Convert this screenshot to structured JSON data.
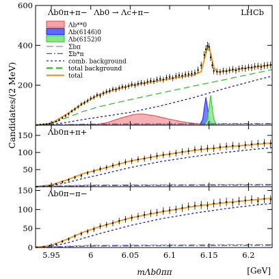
{
  "chart_data": [
    {
      "type": "scatter",
      "panel": "top",
      "label": "Λb0π+π−",
      "decay_label": "Λb0 → Λc+π−",
      "brand": "LHCb",
      "ylabel": "Candidates/(2 MeV)",
      "ylim": [
        0,
        600
      ],
      "yticks": [
        200,
        400,
        600
      ],
      "legend_placement": "top-left",
      "legend": [
        {
          "label": "Λb**0",
          "kind": "fill",
          "color": "#ff3b3b",
          "fill": "#f4a3a8"
        },
        {
          "label": "Λb(6146)0",
          "kind": "fill",
          "color": "#2020ff",
          "fill": "#5a6cff"
        },
        {
          "label": "Λb(6152)0",
          "kind": "fill",
          "color": "#22cc22",
          "fill": "#8ae68a"
        },
        {
          "label": "Σbπ",
          "kind": "line",
          "color": "#9090e0",
          "dash": "10 4"
        },
        {
          "label": "Σb*π",
          "kind": "line",
          "color": "#555588",
          "dash": "8 3 2 3"
        },
        {
          "label": "comb. background",
          "kind": "line",
          "color": "#1a1aa8",
          "dash": "3 3"
        },
        {
          "label": "total background",
          "kind": "line",
          "color": "#3cb83c",
          "dash": "9 5"
        },
        {
          "label": "total",
          "kind": "line",
          "color": "#f59a1c",
          "dash": ""
        }
      ],
      "data_x": [
        5.932,
        5.936,
        5.94,
        5.944,
        5.948,
        5.952,
        5.956,
        5.96,
        5.964,
        5.968,
        5.972,
        5.976,
        5.98,
        5.984,
        5.988,
        5.992,
        5.996,
        6.0,
        6.004,
        6.008,
        6.012,
        6.016,
        6.02,
        6.024,
        6.028,
        6.032,
        6.036,
        6.04,
        6.044,
        6.048,
        6.052,
        6.056,
        6.06,
        6.064,
        6.068,
        6.072,
        6.076,
        6.08,
        6.084,
        6.088,
        6.092,
        6.096,
        6.1,
        6.104,
        6.108,
        6.112,
        6.116,
        6.12,
        6.124,
        6.128,
        6.132,
        6.136,
        6.14,
        6.144,
        6.146,
        6.148,
        6.15,
        6.152,
        6.154,
        6.156,
        6.16,
        6.164,
        6.168,
        6.172,
        6.176,
        6.18,
        6.184,
        6.188,
        6.192,
        6.196,
        6.2,
        6.204,
        6.208,
        6.212,
        6.216,
        6.22,
        6.224,
        6.228
      ],
      "data_y": [
        1,
        3,
        4,
        5,
        8,
        12,
        18,
        26,
        36,
        46,
        56,
        70,
        80,
        92,
        105,
        112,
        122,
        134,
        140,
        151,
        148,
        160,
        168,
        172,
        180,
        178,
        186,
        192,
        190,
        196,
        204,
        200,
        208,
        212,
        210,
        218,
        222,
        220,
        228,
        232,
        228,
        238,
        242,
        236,
        246,
        250,
        248,
        254,
        256,
        258,
        262,
        276,
        300,
        352,
        380,
        398,
        392,
        340,
        300,
        272,
        268,
        266,
        272,
        270,
        276,
        280,
        274,
        282,
        286,
        284,
        290,
        288,
        294,
        296,
        292,
        298,
        300,
        302
      ],
      "series": [
        {
          "name": "total",
          "x": [
            5.93,
            5.95,
            5.97,
            5.99,
            6.01,
            6.03,
            6.05,
            6.07,
            6.09,
            6.11,
            6.13,
            6.14,
            6.144,
            6.148,
            6.15,
            6.152,
            6.156,
            6.16,
            6.17,
            6.19,
            6.21,
            6.23
          ],
          "y": [
            0,
            10,
            56,
            108,
            152,
            178,
            198,
            212,
            226,
            240,
            252,
            268,
            330,
            392,
            394,
            360,
            290,
            268,
            270,
            282,
            292,
            302
          ]
        },
        {
          "name": "total background",
          "x": [
            5.93,
            5.95,
            5.97,
            5.99,
            6.01,
            6.05,
            6.09,
            6.13,
            6.17,
            6.21,
            6.23
          ],
          "y": [
            0,
            8,
            38,
            68,
            92,
            128,
            162,
            196,
            228,
            262,
            278
          ]
        },
        {
          "name": "comb. background",
          "x": [
            5.93,
            5.95,
            5.97,
            5.99,
            6.01,
            6.05,
            6.09,
            6.13,
            6.17,
            6.21,
            6.23
          ],
          "y": [
            0,
            3,
            14,
            28,
            40,
            64,
            98,
            138,
            184,
            226,
            246
          ]
        },
        {
          "name": "Λb**0",
          "x": [
            6.0,
            6.02,
            6.04,
            6.055,
            6.065,
            6.08,
            6.1,
            6.12,
            6.14,
            6.16
          ],
          "y": [
            0,
            12,
            38,
            54,
            56,
            48,
            30,
            14,
            5,
            0
          ]
        },
        {
          "name": "Λb(6146)0",
          "x": [
            6.138,
            6.142,
            6.144,
            6.146,
            6.148,
            6.15,
            6.154
          ],
          "y": [
            0,
            30,
            90,
            140,
            90,
            30,
            0
          ]
        },
        {
          "name": "Λb(6152)0",
          "x": [
            6.144,
            6.148,
            6.15,
            6.152,
            6.154,
            6.156,
            6.16
          ],
          "y": [
            0,
            30,
            90,
            150,
            90,
            30,
            0
          ]
        },
        {
          "name": "Σbπ",
          "x": [
            5.93,
            6.0,
            6.23
          ],
          "y": [
            0,
            4,
            6
          ]
        },
        {
          "name": "Σb*π",
          "x": [
            5.93,
            6.0,
            6.23
          ],
          "y": [
            0,
            5,
            8
          ]
        }
      ]
    },
    {
      "type": "scatter",
      "panel": "middle",
      "label": "Λb0π+π+",
      "ylim": [
        0,
        180
      ],
      "yticks": [
        50,
        100,
        150
      ],
      "data_x": [
        5.932,
        5.94,
        5.948,
        5.956,
        5.964,
        5.972,
        5.98,
        5.988,
        5.996,
        6.004,
        6.012,
        6.02,
        6.028,
        6.036,
        6.044,
        6.052,
        6.06,
        6.068,
        6.076,
        6.084,
        6.092,
        6.1,
        6.108,
        6.116,
        6.124,
        6.132,
        6.14,
        6.148,
        6.156,
        6.164,
        6.172,
        6.18,
        6.188,
        6.196,
        6.204,
        6.212,
        6.22,
        6.228
      ],
      "data_y": [
        0,
        1,
        3,
        8,
        14,
        20,
        27,
        32,
        40,
        45,
        52,
        56,
        62,
        67,
        72,
        75,
        80,
        82,
        86,
        90,
        93,
        95,
        98,
        102,
        104,
        108,
        110,
        112,
        112,
        116,
        118,
        120,
        118,
        122,
        124,
        126,
        128,
        126
      ],
      "series": [
        {
          "name": "total",
          "x": [
            5.93,
            5.95,
            5.97,
            5.99,
            6.01,
            6.05,
            6.09,
            6.13,
            6.17,
            6.21,
            6.23
          ],
          "y": [
            0,
            5,
            20,
            38,
            50,
            75,
            92,
            106,
            116,
            124,
            128
          ]
        },
        {
          "name": "comb. background",
          "x": [
            5.93,
            5.95,
            5.97,
            5.99,
            6.01,
            6.05,
            6.09,
            6.13,
            6.17,
            6.21,
            6.23
          ],
          "y": [
            0,
            3,
            12,
            24,
            34,
            56,
            74,
            88,
            100,
            110,
            114
          ]
        },
        {
          "name": "Σbπ",
          "x": [
            5.93,
            6.0,
            6.23
          ],
          "y": [
            0,
            5,
            7
          ]
        },
        {
          "name": "Σb*π",
          "x": [
            5.93,
            6.0,
            6.23
          ],
          "y": [
            0,
            3,
            5
          ]
        }
      ]
    },
    {
      "type": "scatter",
      "panel": "bottom",
      "label": "Λb0π−π−",
      "xlabel": "mΛb0ππ",
      "xunit": "[GeV]",
      "ylim": [
        0,
        160
      ],
      "yticks": [
        0,
        50,
        100,
        150
      ],
      "xlim": [
        5.93,
        6.23
      ],
      "xticks": [
        5.95,
        6.0,
        6.05,
        6.1,
        6.15,
        6.2
      ],
      "xtick_labels": [
        "5.95",
        "6",
        "6.05",
        "6.1",
        "6.15",
        "6.2"
      ],
      "data_x": [
        5.932,
        5.94,
        5.948,
        5.956,
        5.964,
        5.972,
        5.98,
        5.988,
        5.996,
        6.004,
        6.012,
        6.02,
        6.028,
        6.036,
        6.044,
        6.052,
        6.06,
        6.068,
        6.076,
        6.084,
        6.092,
        6.1,
        6.108,
        6.116,
        6.124,
        6.132,
        6.14,
        6.148,
        6.156,
        6.164,
        6.172,
        6.18,
        6.188,
        6.196,
        6.204,
        6.212,
        6.22,
        6.228
      ],
      "data_y": [
        1,
        2,
        5,
        9,
        16,
        22,
        30,
        36,
        42,
        48,
        56,
        60,
        64,
        70,
        74,
        78,
        82,
        86,
        90,
        92,
        96,
        98,
        100,
        104,
        108,
        110,
        112,
        110,
        116,
        118,
        120,
        118,
        122,
        124,
        126,
        122,
        128,
        126
      ],
      "series": [
        {
          "name": "total",
          "x": [
            5.93,
            5.95,
            5.97,
            5.99,
            6.01,
            6.05,
            6.09,
            6.13,
            6.17,
            6.21,
            6.23
          ],
          "y": [
            0,
            6,
            22,
            40,
            54,
            78,
            94,
            108,
            118,
            126,
            130
          ]
        },
        {
          "name": "comb. background",
          "x": [
            5.93,
            5.95,
            5.97,
            5.99,
            6.01,
            6.05,
            6.09,
            6.13,
            6.17,
            6.21,
            6.23
          ],
          "y": [
            0,
            3,
            12,
            24,
            36,
            58,
            76,
            90,
            102,
            112,
            116
          ]
        },
        {
          "name": "Σbπ",
          "x": [
            5.93,
            6.0,
            6.23
          ],
          "y": [
            0,
            6,
            8
          ]
        },
        {
          "name": "Σb*π",
          "x": [
            5.93,
            6.0,
            6.23
          ],
          "y": [
            0,
            4,
            6
          ]
        }
      ]
    }
  ]
}
